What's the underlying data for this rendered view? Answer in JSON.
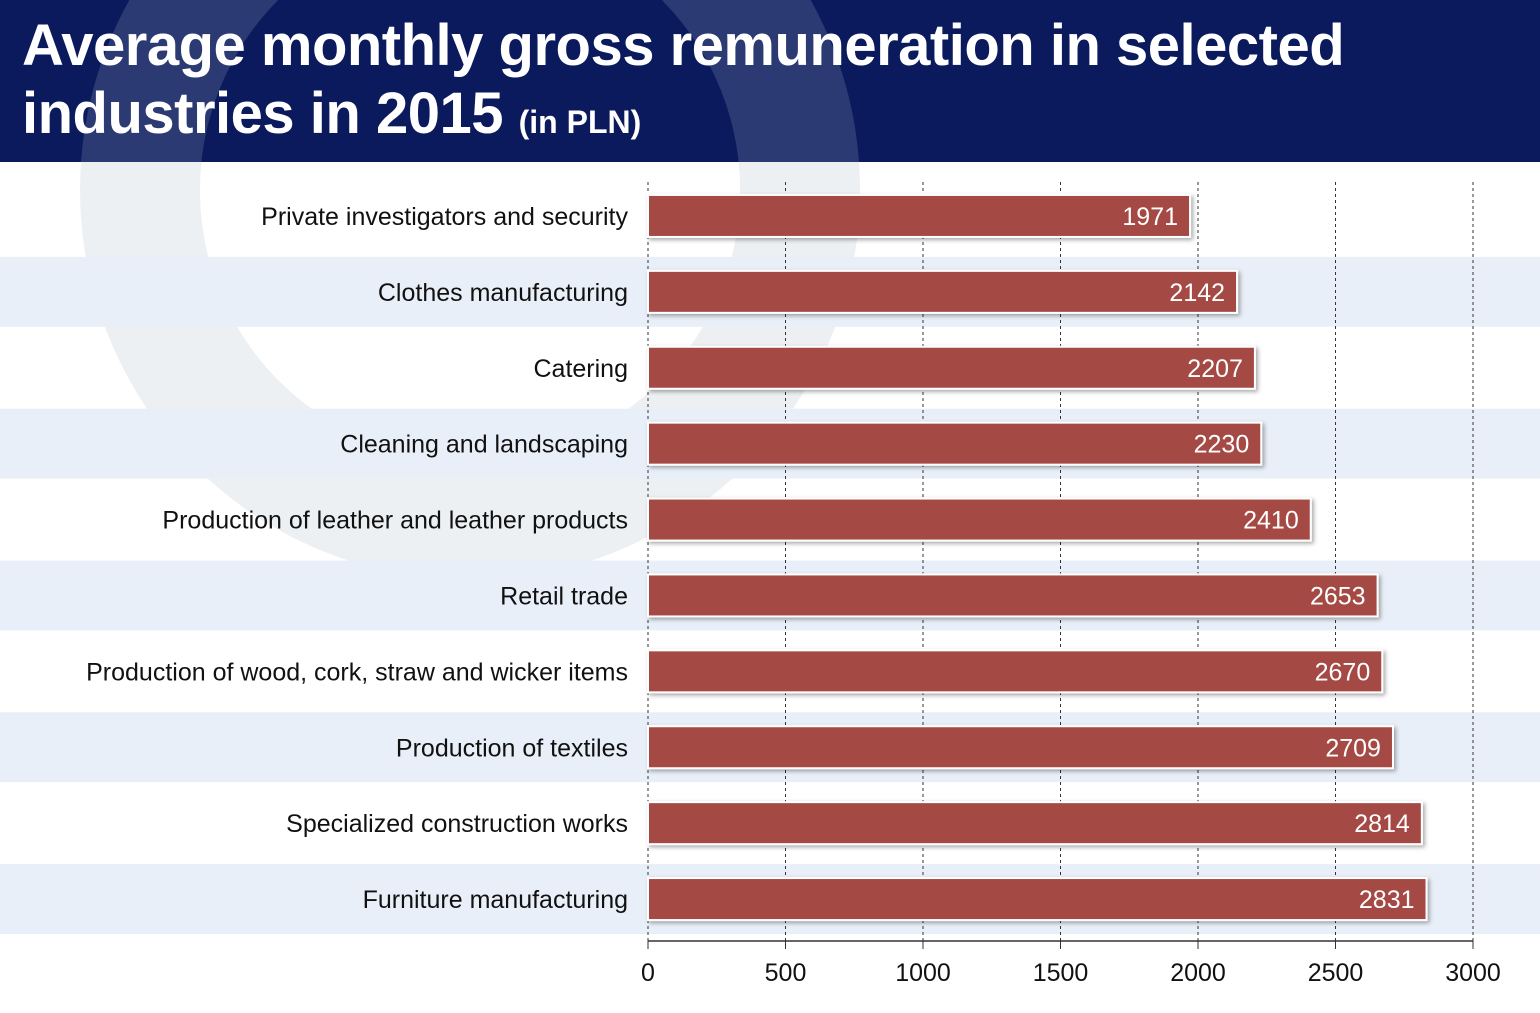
{
  "header": {
    "title": "Average monthly gross remuneration in selected industries in 2015",
    "unit": "(in PLN)"
  },
  "colors": {
    "header_bg": "#0a1a5c",
    "bar": "#a54a45",
    "stripe": "#e9eff8",
    "grid": "#333333"
  },
  "chart_data": {
    "type": "bar",
    "orientation": "horizontal",
    "title": "Average monthly gross remuneration in selected industries in 2015 (in PLN)",
    "categories": [
      "Private investigators and security",
      "Clothes manufacturing",
      "Catering",
      "Cleaning and landscaping",
      "Production of leather and leather products",
      "Retail trade",
      "Production of wood, cork, straw and wicker items",
      "Production of textiles",
      "Specialized construction works",
      "Furniture manufacturing"
    ],
    "values": [
      1971,
      2142,
      2207,
      2230,
      2410,
      2653,
      2670,
      2709,
      2814,
      2831
    ],
    "xlim": [
      0,
      3000
    ],
    "xticks": [
      0,
      500,
      1000,
      1500,
      2000,
      2500,
      3000
    ],
    "grid": "vertical dashed",
    "data_labels": true,
    "legend": "none"
  }
}
